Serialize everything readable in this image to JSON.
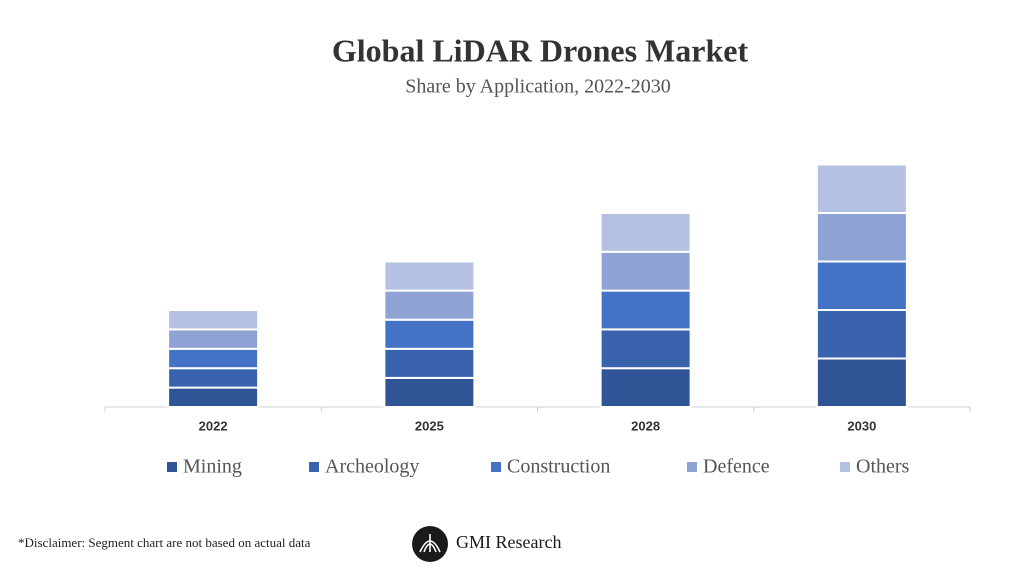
{
  "chart_data": {
    "type": "stacked_bar",
    "title": "Global LiDAR Drones Market",
    "subtitle": "Share by Application, 2022-2030",
    "categories": [
      "2022",
      "2025",
      "2028",
      "2030"
    ],
    "series": [
      {
        "name": "Mining",
        "color": "#2f5597",
        "values": [
          20,
          30,
          40,
          50
        ]
      },
      {
        "name": "Archeology",
        "color": "#3a63ad",
        "values": [
          20,
          30,
          40,
          50
        ]
      },
      {
        "name": "Construction",
        "color": "#4472c4",
        "values": [
          20,
          30,
          40,
          50
        ]
      },
      {
        "name": "Defence",
        "color": "#8fa2d4",
        "values": [
          20,
          30,
          40,
          50
        ]
      },
      {
        "name": "Others",
        "color": "#b4c1e2",
        "values": [
          20,
          30,
          40,
          50
        ]
      }
    ],
    "ylim": [
      0,
      300
    ],
    "grid": false,
    "legend": "bottom"
  },
  "footer": {
    "disclaimer": "*Disclaimer:  Segment chart are not based on actual data",
    "brand": "GMI Research"
  }
}
